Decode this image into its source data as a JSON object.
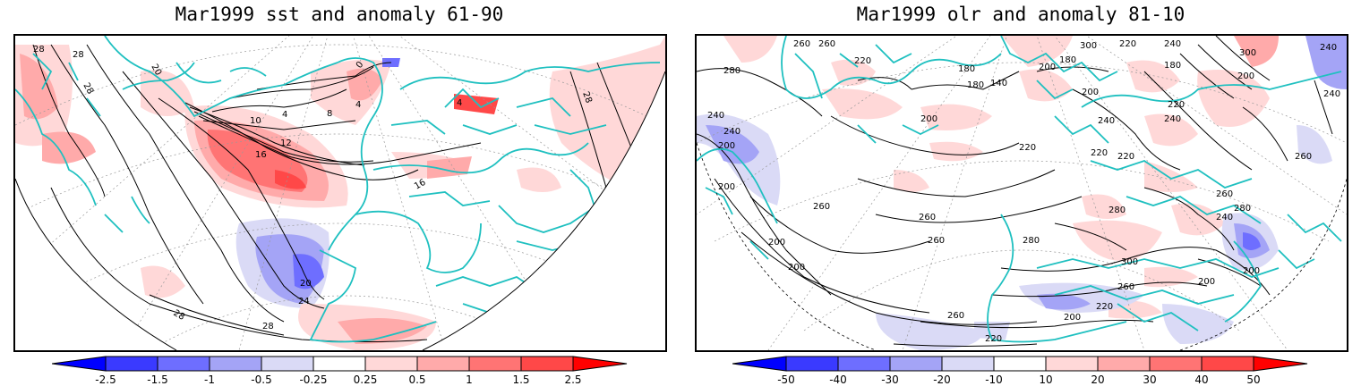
{
  "panels": [
    {
      "title": "Mar1999 sst and anomaly 61-90",
      "variable": "sst",
      "contour_labels": [
        "28",
        "28",
        "28",
        "20",
        "28",
        "0",
        "4",
        "8",
        "10",
        "12",
        "16",
        "16",
        "4",
        "20",
        "24",
        "28",
        "28",
        "4"
      ],
      "colorbar": {
        "levels": [
          "-2.5",
          "-1.5",
          "-1",
          "-0.5",
          "-0.25",
          "0.25",
          "0.5",
          "1",
          "1.5",
          "2.5"
        ],
        "colors": [
          "#0000ff",
          "#3a3aff",
          "#6e6eff",
          "#a4a4f6",
          "#dadaf6",
          "#ffffff",
          "#ffd8d8",
          "#ffaaaa",
          "#ff7474",
          "#ff4848",
          "#ff0000"
        ]
      }
    },
    {
      "title": "Mar1999 olr and anomaly 81-10",
      "variable": "olr",
      "contour_labels": [
        "260",
        "260",
        "220",
        "180",
        "180",
        "140",
        "200",
        "180",
        "300",
        "220",
        "180",
        "200",
        "300",
        "240",
        "280",
        "240",
        "200",
        "200",
        "240",
        "220",
        "240",
        "260",
        "220",
        "240",
        "200",
        "240",
        "220",
        "260",
        "200",
        "260",
        "280",
        "260",
        "240",
        "280",
        "200",
        "300",
        "280",
        "260",
        "200",
        "240",
        "220",
        "260",
        "220",
        "200",
        "220",
        "200",
        "260",
        "200"
      ],
      "colorbar": {
        "levels": [
          "-50",
          "-40",
          "-30",
          "-20",
          "-10",
          "10",
          "20",
          "30",
          "40",
          "50"
        ],
        "colors": [
          "#0000ff",
          "#3a3aff",
          "#6e6eff",
          "#a4a4f6",
          "#dadaf6",
          "#ffffff",
          "#ffd8d8",
          "#ffaaaa",
          "#ff7474",
          "#ff4848",
          "#ff0000"
        ]
      }
    }
  ],
  "colors": {
    "coastline": "#1fc0c0",
    "contour": "#000000",
    "frame": "#000000"
  }
}
